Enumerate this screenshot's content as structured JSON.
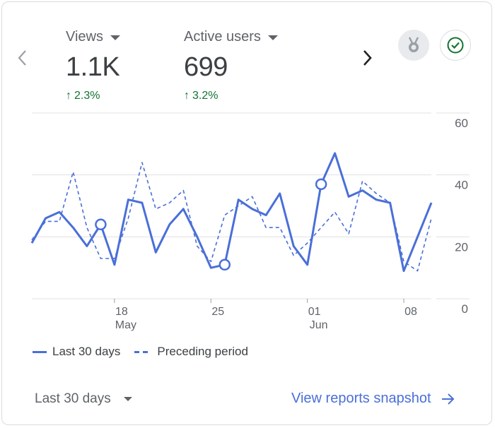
{
  "metrics": [
    {
      "label": "Views",
      "value": "1.1K",
      "change": "2.3%"
    },
    {
      "label": "Active users",
      "value": "699",
      "change": "3.2%"
    }
  ],
  "icons": {
    "prev": "chevron-left-icon",
    "next": "chevron-right-icon",
    "insights": "insights-medal-icon",
    "status": "check-circle-icon",
    "change_up": "arrow-up-icon",
    "view_link": "arrow-right-icon"
  },
  "colors": {
    "series": "#4a6fd8",
    "positive": "#137333",
    "muted": "#5f6368",
    "grid": "#e0e0e0"
  },
  "chart_data": {
    "type": "line",
    "x": [
      "May 12",
      "May 13",
      "May 14",
      "May 15",
      "May 16",
      "May 17",
      "May 18",
      "May 19",
      "May 20",
      "May 21",
      "May 22",
      "May 23",
      "May 24",
      "May 25",
      "May 26",
      "May 27",
      "May 28",
      "May 29",
      "May 30",
      "May 31",
      "Jun 01",
      "Jun 02",
      "Jun 03",
      "Jun 04",
      "Jun 05",
      "Jun 06",
      "Jun 07",
      "Jun 08",
      "Jun 09",
      "Jun 10"
    ],
    "x_ticks": [
      {
        "index": 6,
        "label": "18",
        "sublabel": "May"
      },
      {
        "index": 13,
        "label": "25",
        "sublabel": ""
      },
      {
        "index": 20,
        "label": "01",
        "sublabel": "Jun"
      },
      {
        "index": 27,
        "label": "08",
        "sublabel": ""
      }
    ],
    "y_ticks": [
      0,
      20,
      40,
      60
    ],
    "ylim": [
      0,
      60
    ],
    "series": [
      {
        "name": "Last 30 days",
        "style": "solid",
        "values": [
          18,
          26,
          28,
          23,
          17,
          24,
          11,
          32,
          31,
          15,
          24,
          29,
          20,
          10,
          11,
          32,
          29,
          27,
          34,
          17,
          11,
          37,
          47,
          33,
          35,
          32,
          31,
          9,
          20,
          31
        ],
        "markers": [
          5,
          14,
          21
        ]
      },
      {
        "name": "Preceding period",
        "style": "dashed",
        "values": [
          19,
          25,
          25,
          41,
          23,
          13,
          13,
          26,
          44,
          29,
          31,
          35,
          17,
          12,
          27,
          30,
          33,
          23,
          23,
          14,
          18,
          23,
          28,
          21,
          38,
          34,
          31,
          12,
          9,
          26
        ]
      }
    ],
    "legend_position": "bottom-left",
    "grid": true
  },
  "footer": {
    "date_range": "Last 30 days",
    "view_link": "View reports snapshot"
  }
}
